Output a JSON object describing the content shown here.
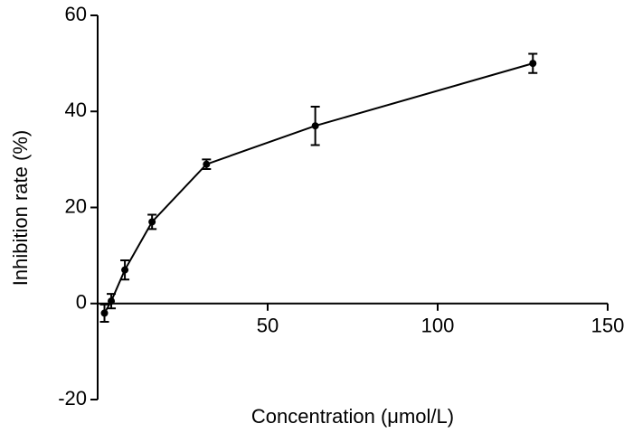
{
  "chart_data": {
    "type": "line",
    "x_label": "Concentration (μmol/L)",
    "y_label": "Inhibition rate (%)",
    "x": [
      2,
      4,
      8,
      16,
      32,
      64,
      128
    ],
    "series": [
      {
        "values": [
          -2,
          0.5,
          7,
          17,
          29,
          37,
          50
        ],
        "errors": [
          1.8,
          1.5,
          2,
          1.5,
          1,
          4,
          2
        ],
        "color": "#000000"
      }
    ],
    "xlim": [
      0,
      150
    ],
    "xticks": [
      50,
      100,
      150
    ],
    "ylim": [
      -20,
      60
    ],
    "yticks": [
      -20,
      0,
      20,
      40,
      60
    ]
  }
}
